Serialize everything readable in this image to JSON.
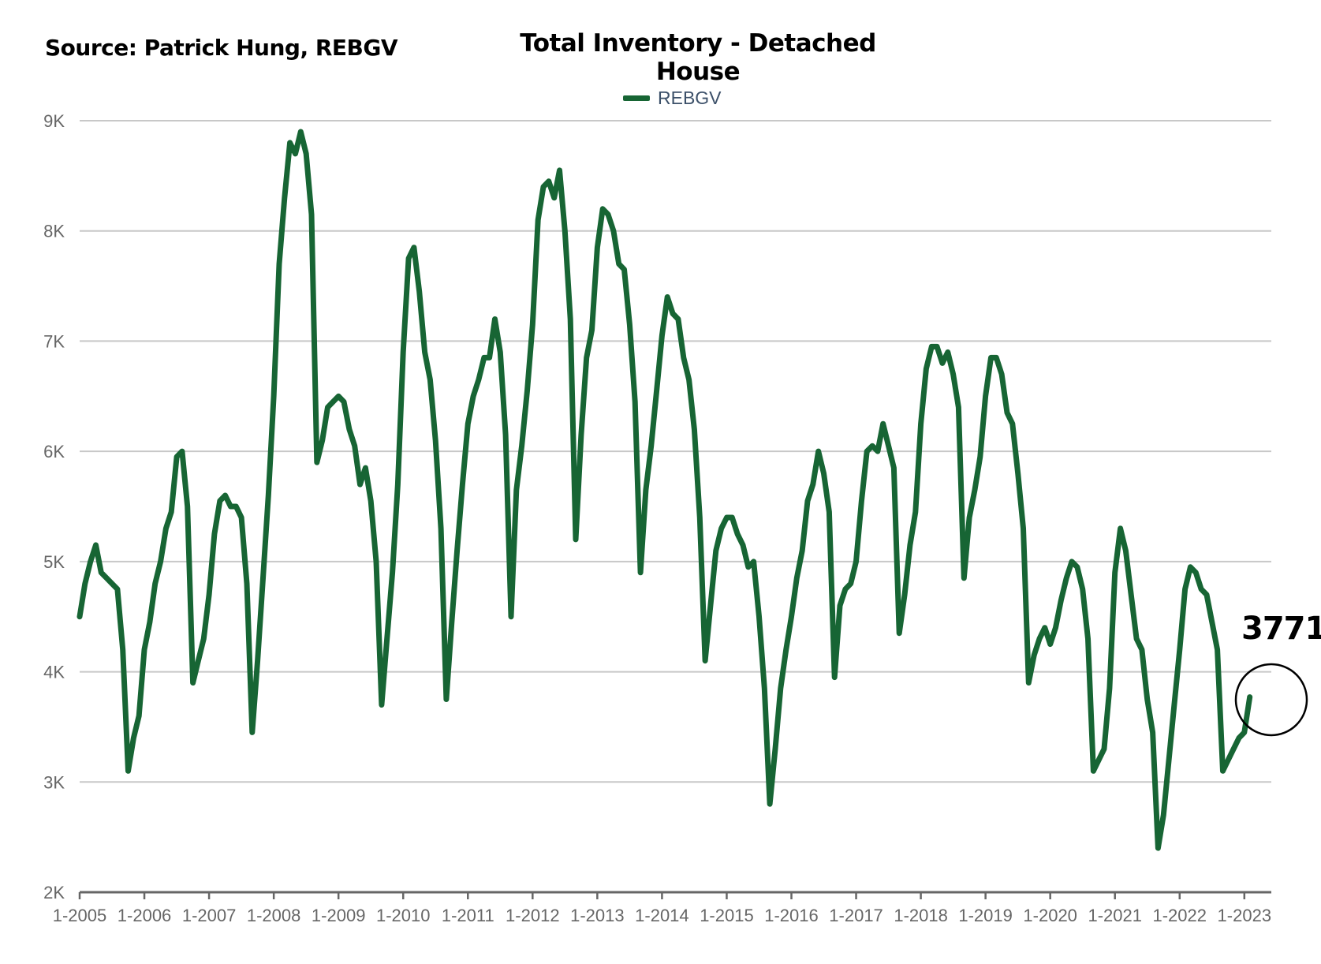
{
  "header": {
    "source": "Source:  Patrick Hung, REBGV",
    "title": "Total Inventory - Detached House"
  },
  "annotation": {
    "value_label": "3771"
  },
  "colors": {
    "series": "#176534",
    "grid": "#c8c8c8",
    "axis": "#666666",
    "legend_text": "#3c5069",
    "circle": "#000000"
  },
  "chart_data": {
    "type": "line",
    "title": "Total Inventory - Detached House",
    "xlabel": "",
    "ylabel": "",
    "ylim": [
      2000,
      9000
    ],
    "yticks": [
      2000,
      3000,
      4000,
      5000,
      6000,
      7000,
      8000,
      9000
    ],
    "ytick_labels": [
      "2K",
      "3K",
      "4K",
      "5K",
      "6K",
      "7K",
      "8K",
      "9K"
    ],
    "xtick_labels": [
      "1-2005",
      "1-2006",
      "1-2007",
      "1-2008",
      "1-2009",
      "1-2010",
      "1-2011",
      "1-2012",
      "1-2013",
      "1-2014",
      "1-2015",
      "1-2016",
      "1-2017",
      "1-2018",
      "1-2019",
      "1-2020",
      "1-2021",
      "1-2022",
      "1-2023"
    ],
    "x_start": "1-2005",
    "x_end": "5-2023",
    "grid": true,
    "legend": "top-center",
    "series": [
      {
        "name": "REBGV",
        "values": [
          4500,
          4800,
          5000,
          5150,
          4900,
          4850,
          4800,
          4750,
          4200,
          3100,
          3400,
          3600,
          4200,
          4450,
          4800,
          5000,
          5300,
          5450,
          5950,
          6000,
          5500,
          3900,
          4100,
          4300,
          4700,
          5250,
          5550,
          5600,
          5500,
          5500,
          5400,
          4800,
          3450,
          4100,
          4850,
          5600,
          6500,
          7700,
          8300,
          8800,
          8700,
          8900,
          8700,
          8150,
          5900,
          6100,
          6400,
          6450,
          6500,
          6450,
          6200,
          6050,
          5700,
          5850,
          5550,
          5000,
          3700,
          4300,
          4900,
          5700,
          6900,
          7750,
          7850,
          7450,
          6900,
          6650,
          6100,
          5300,
          3750,
          4450,
          5100,
          5700,
          6250,
          6500,
          6650,
          6850,
          6850,
          7200,
          6900,
          6150,
          4500,
          5650,
          6050,
          6550,
          7150,
          8100,
          8400,
          8450,
          8300,
          8550,
          8000,
          7200,
          5200,
          6150,
          6850,
          7100,
          7850,
          8200,
          8150,
          8000,
          7700,
          7650,
          7150,
          6450,
          4900,
          5650,
          6050,
          6550,
          7050,
          7400,
          7250,
          7200,
          6850,
          6650,
          6200,
          5400,
          4100,
          4600,
          5100,
          5300,
          5400,
          5400,
          5250,
          5150,
          4950,
          5000,
          4500,
          3850,
          2800,
          3300,
          3850,
          4200,
          4500,
          4850,
          5100,
          5550,
          5700,
          6000,
          5800,
          5450,
          3950,
          4600,
          4750,
          4800,
          5000,
          5550,
          6000,
          6050,
          6000,
          6250,
          6050,
          5850,
          4350,
          4700,
          5150,
          5450,
          6250,
          6750,
          6950,
          6950,
          6800,
          6900,
          6700,
          6400,
          4850,
          5400,
          5650,
          5950,
          6500,
          6850,
          6850,
          6700,
          6350,
          6250,
          5800,
          5300,
          3900,
          4150,
          4300,
          4400,
          4250,
          4400,
          4650,
          4850,
          5000,
          4950,
          4750,
          4300,
          3100,
          3200,
          3300,
          3850,
          4900,
          5300,
          5100,
          4700,
          4300,
          4200,
          3750,
          3450,
          2400,
          2700,
          3200,
          3700,
          4200,
          4750,
          4950,
          4900,
          4750,
          4700,
          4450,
          4200,
          3100,
          3200,
          3300,
          3400,
          3450,
          3771
        ]
      }
    ]
  }
}
